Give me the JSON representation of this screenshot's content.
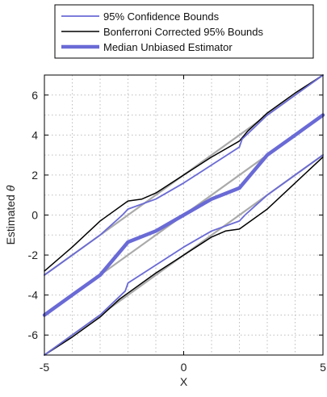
{
  "chart_data": {
    "type": "line",
    "title": "",
    "xlabel": "X",
    "ylabel": "Estimated",
    "ylabel_symbol": "θ",
    "xlim": [
      -5,
      5
    ],
    "ylim": [
      -7,
      7
    ],
    "x_ticks": [
      -5,
      0,
      5
    ],
    "x_tick_labels": [
      "-5",
      "0",
      "5"
    ],
    "y_ticks": [
      -6,
      -4,
      -2,
      0,
      2,
      4,
      6
    ],
    "y_tick_labels": [
      "-6",
      "-4",
      "-2",
      "0",
      "2",
      "4",
      "6"
    ],
    "grid": true,
    "grid_style": "dotted",
    "legend_position": "top",
    "colors": {
      "confidence": "#6a6ad6",
      "bonferroni": "#000000",
      "median": "#6a6ad6",
      "reference": "#aaaaaa"
    },
    "series": [
      {
        "name": "95% Confidence Bounds",
        "role": "confidence",
        "segments": [
          [
            [
              -5,
              -3.0
            ],
            [
              -4,
              -2.0
            ],
            [
              -3,
              -1.0
            ],
            [
              -2.2,
              0.0
            ],
            [
              -2,
              0.3
            ],
            [
              -1,
              0.8
            ],
            [
              0,
              1.6
            ],
            [
              1,
              2.5
            ],
            [
              2,
              3.4
            ],
            [
              2.1,
              3.8
            ],
            [
              3,
              5.0
            ],
            [
              4,
              6.0
            ],
            [
              5,
              7.0
            ]
          ],
          [
            [
              -5,
              -7.0
            ],
            [
              -4,
              -6.0
            ],
            [
              -3,
              -5.0
            ],
            [
              -2.1,
              -3.8
            ],
            [
              -2,
              -3.4
            ],
            [
              -1,
              -2.5
            ],
            [
              0,
              -1.6
            ],
            [
              1,
              -0.8
            ],
            [
              2,
              -0.3
            ],
            [
              2.2,
              0.0
            ],
            [
              3,
              1.0
            ],
            [
              4,
              2.0
            ],
            [
              5,
              3.0
            ]
          ]
        ]
      },
      {
        "name": "Bonferroni Corrected 95% Bounds",
        "role": "bonferroni",
        "segments": [
          [
            [
              -5,
              -2.8
            ],
            [
              -4,
              -1.6
            ],
            [
              -3,
              -0.3
            ],
            [
              -2,
              0.7
            ],
            [
              -1.5,
              0.8
            ],
            [
              -1,
              1.1
            ],
            [
              0,
              2.0
            ],
            [
              1,
              2.9
            ],
            [
              2,
              3.7
            ],
            [
              2.3,
              4.2
            ],
            [
              3,
              5.1
            ],
            [
              4,
              6.1
            ],
            [
              5,
              7.0
            ]
          ],
          [
            [
              -5,
              -7.0
            ],
            [
              -4,
              -6.1
            ],
            [
              -3,
              -5.1
            ],
            [
              -2.3,
              -4.2
            ],
            [
              -2,
              -3.9
            ],
            [
              -1,
              -2.9
            ],
            [
              0,
              -2.0
            ],
            [
              1,
              -1.1
            ],
            [
              1.5,
              -0.8
            ],
            [
              2,
              -0.7
            ],
            [
              3,
              0.3
            ],
            [
              4,
              1.6
            ],
            [
              5,
              2.9
            ]
          ]
        ]
      },
      {
        "name": "Median Unbiased Estimator",
        "role": "median",
        "segments": [
          [
            [
              -5,
              -5.0
            ],
            [
              -4,
              -4.0
            ],
            [
              -3,
              -3.0
            ],
            [
              -2,
              -1.35
            ],
            [
              -1,
              -0.8
            ],
            [
              0,
              0.0
            ],
            [
              1,
              0.8
            ],
            [
              2,
              1.35
            ],
            [
              3,
              3.0
            ],
            [
              4,
              4.0
            ],
            [
              5,
              5.0
            ]
          ]
        ]
      },
      {
        "role": "reference",
        "segments": [
          [
            [
              -5,
              -3.0
            ],
            [
              0,
              2.0
            ],
            [
              3,
              5.0
            ],
            [
              5,
              7.0
            ]
          ],
          [
            [
              -5,
              -5.0
            ],
            [
              5,
              5.0
            ]
          ],
          [
            [
              -5,
              -7.0
            ],
            [
              -3,
              -5.0
            ],
            [
              0,
              -2.0
            ],
            [
              5,
              3.0
            ]
          ]
        ]
      }
    ]
  }
}
